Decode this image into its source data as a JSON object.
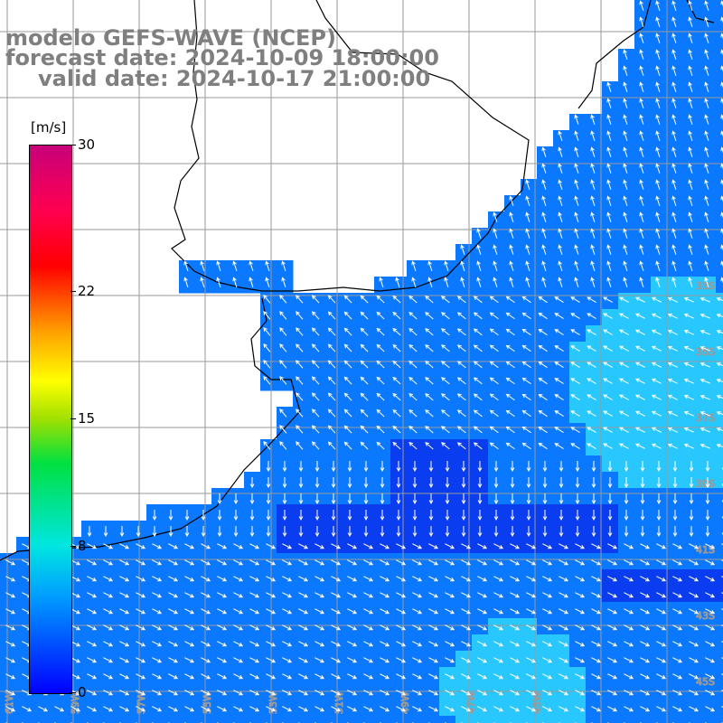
{
  "header": {
    "model": "modelo GEFS-WAVE (NCEP)",
    "forecast": "forecast date: 2024-10-09 18:00:00",
    "valid": "valid date: 2024-10-17 21:00:00"
  },
  "colorbar": {
    "unit": "[m/s]",
    "ticks": [
      "30",
      "22",
      "15",
      "8",
      "0"
    ],
    "tick_values": [
      30,
      22,
      15,
      8,
      0
    ]
  },
  "grid_labels": {
    "lat": [
      "33S",
      "35S",
      "37S",
      "39S",
      "41S",
      "43S",
      "45S"
    ],
    "lon": [
      "61W",
      "59W",
      "57W",
      "55W",
      "53W",
      "51W",
      "49W",
      "47W",
      "45W"
    ]
  },
  "colors": {
    "ocean_deep": "#0a3cf0",
    "ocean_mid": "#0a78ff",
    "ocean_light": "#28c8ff",
    "land": "#ffffff",
    "grid": "#9a9a9a",
    "coast": "#000000",
    "arrow": "#ffffff",
    "title_text": "#7f7f7f"
  }
}
